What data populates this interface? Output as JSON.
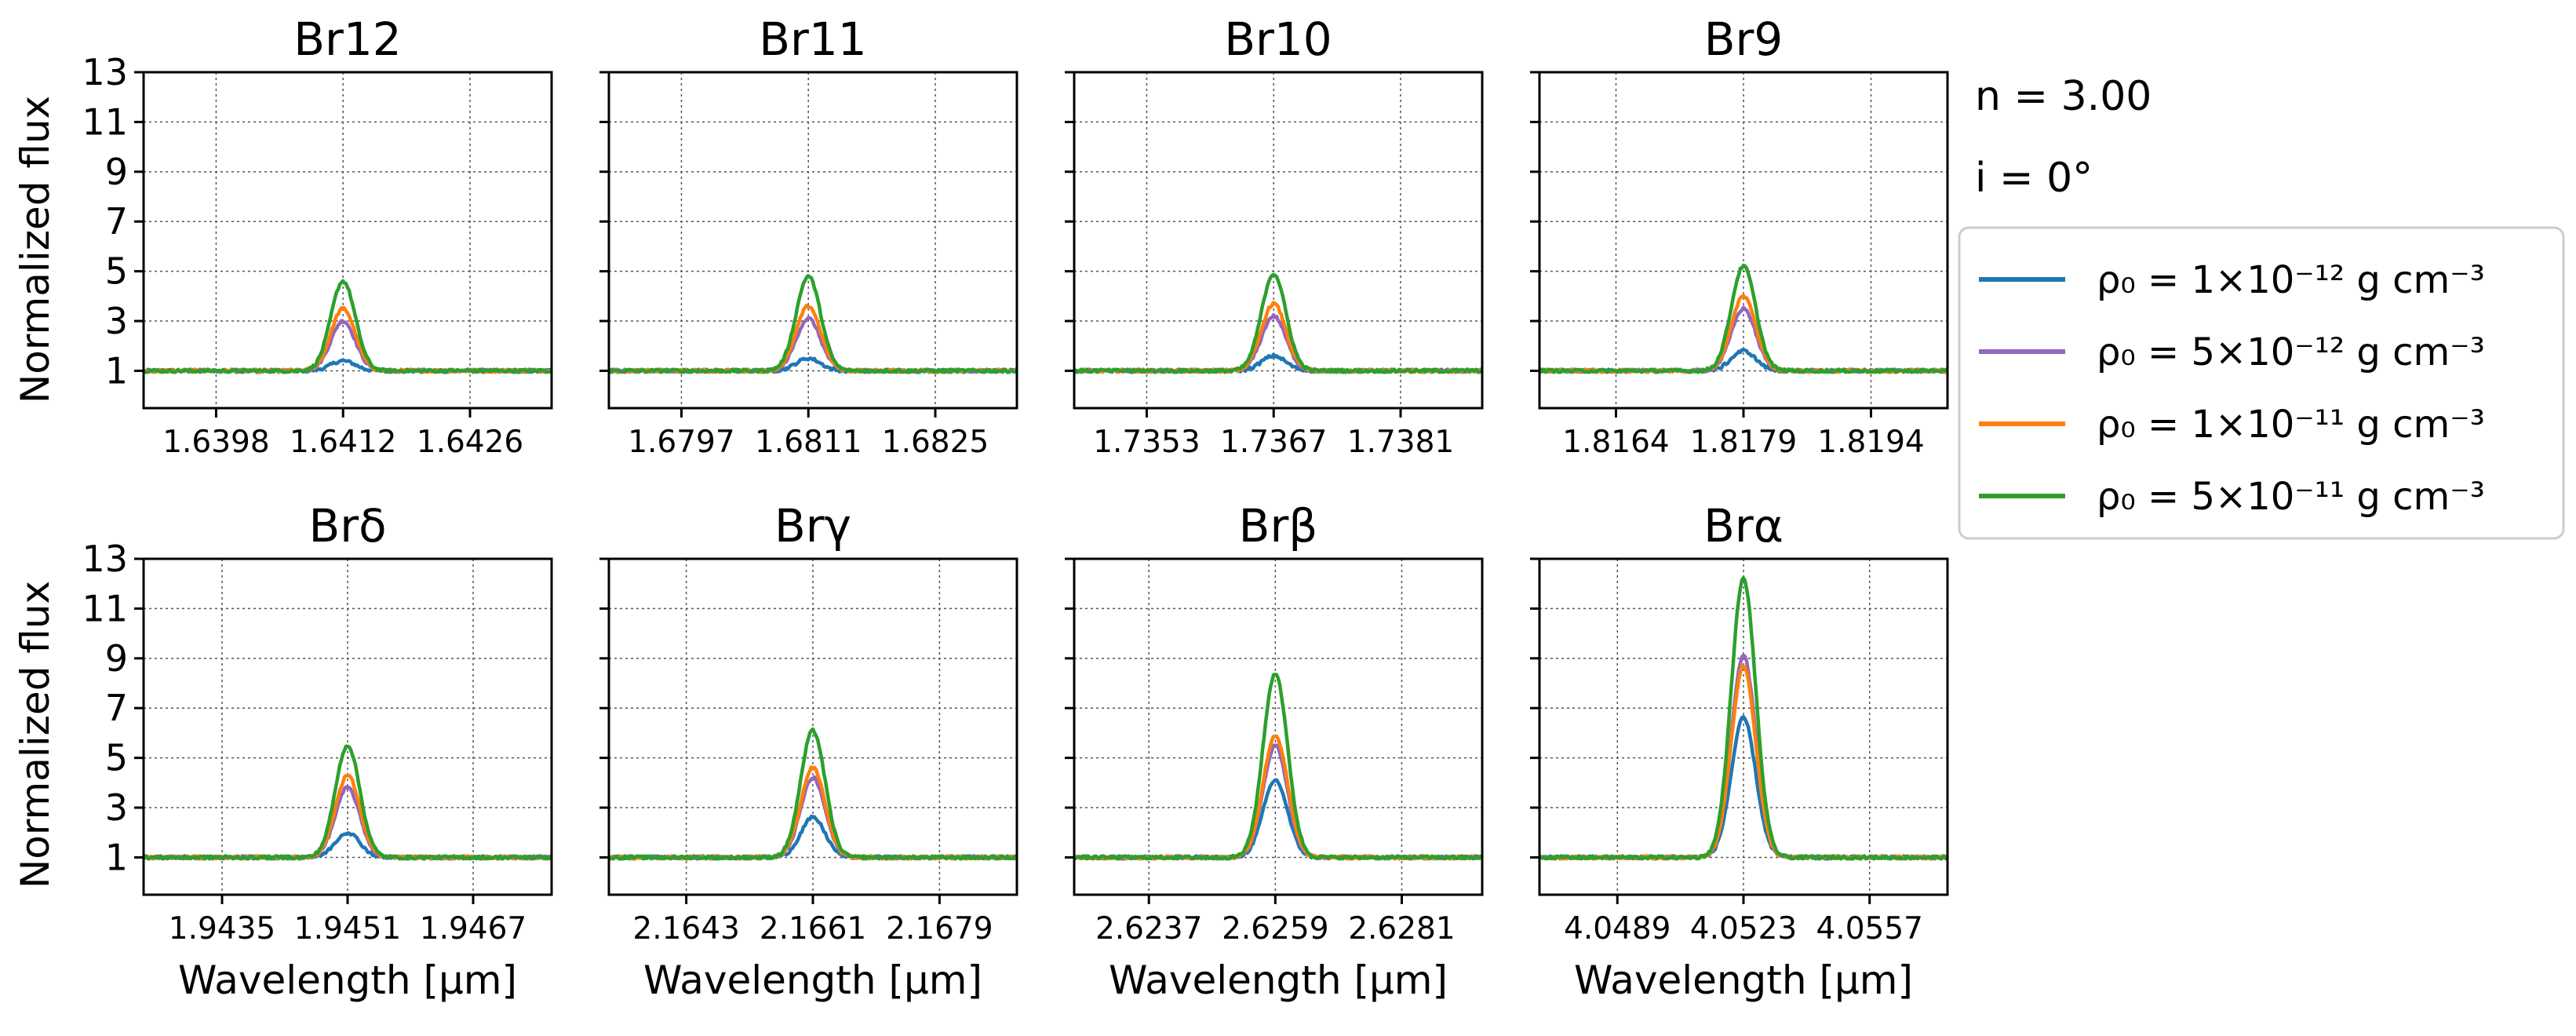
{
  "chart_data": {
    "type": "line",
    "ylabel": "Normalized flux",
    "xlabel": "Wavelength [μm]",
    "ylim": [
      -0.5,
      13
    ],
    "yticks": [
      "1",
      "3",
      "5",
      "7",
      "9",
      "11",
      "13"
    ],
    "grid": true,
    "annotations": {
      "density_index": "n = 3.00",
      "inclination": "i = 0°"
    },
    "legend": {
      "placement": "right",
      "entries": [
        {
          "label": "ρ₀ = 1×10⁻¹² g cm⁻³",
          "color": "#1f77b4"
        },
        {
          "label": "ρ₀ = 5×10⁻¹² g cm⁻³",
          "color": "#9467bd"
        },
        {
          "label": "ρ₀ = 1×10⁻¹¹ g cm⁻³",
          "color": "#ff7f0e"
        },
        {
          "label": "ρ₀ = 5×10⁻¹¹ g cm⁻³",
          "color": "#2ca02c"
        }
      ]
    },
    "panels": [
      {
        "title": "Br12",
        "center": 1.6412,
        "xlim": [
          1.639,
          1.6435
        ],
        "xticks": [
          "1.6398",
          "1.6412",
          "1.6426"
        ],
        "series": [
          {
            "name": "ρ₀ = 1×10⁻¹² g cm⁻³",
            "peak": 1.4
          },
          {
            "name": "ρ₀ = 5×10⁻¹² g cm⁻³",
            "peak": 3.0
          },
          {
            "name": "ρ₀ = 1×10⁻¹¹ g cm⁻³",
            "peak": 3.5
          },
          {
            "name": "ρ₀ = 5×10⁻¹¹ g cm⁻³",
            "peak": 4.6
          }
        ]
      },
      {
        "title": "Br11",
        "center": 1.6811,
        "xlim": [
          1.6789,
          1.6834
        ],
        "xticks": [
          "1.6797",
          "1.6811",
          "1.6825"
        ],
        "series": [
          {
            "name": "ρ₀ = 1×10⁻¹² g cm⁻³",
            "peak": 1.5
          },
          {
            "name": "ρ₀ = 5×10⁻¹² g cm⁻³",
            "peak": 3.1
          },
          {
            "name": "ρ₀ = 1×10⁻¹¹ g cm⁻³",
            "peak": 3.6
          },
          {
            "name": "ρ₀ = 5×10⁻¹¹ g cm⁻³",
            "peak": 4.8
          }
        ]
      },
      {
        "title": "Br10",
        "center": 1.7367,
        "xlim": [
          1.7345,
          1.739
        ],
        "xticks": [
          "1.7353",
          "1.7367",
          "1.7381"
        ],
        "series": [
          {
            "name": "ρ₀ = 1×10⁻¹² g cm⁻³",
            "peak": 1.6
          },
          {
            "name": "ρ₀ = 5×10⁻¹² g cm⁻³",
            "peak": 3.2
          },
          {
            "name": "ρ₀ = 1×10⁻¹¹ g cm⁻³",
            "peak": 3.7
          },
          {
            "name": "ρ₀ = 5×10⁻¹¹ g cm⁻³",
            "peak": 4.9
          }
        ]
      },
      {
        "title": "Br9",
        "center": 1.8179,
        "xlim": [
          1.8155,
          1.8203
        ],
        "xticks": [
          "1.8164",
          "1.8179",
          "1.8194"
        ],
        "series": [
          {
            "name": "ρ₀ = 1×10⁻¹² g cm⁻³",
            "peak": 1.8
          },
          {
            "name": "ρ₀ = 5×10⁻¹² g cm⁻³",
            "peak": 3.5
          },
          {
            "name": "ρ₀ = 1×10⁻¹¹ g cm⁻³",
            "peak": 4.0
          },
          {
            "name": "ρ₀ = 5×10⁻¹¹ g cm⁻³",
            "peak": 5.2
          }
        ]
      },
      {
        "title": "Brδ",
        "center": 1.9451,
        "xlim": [
          1.9425,
          1.9477
        ],
        "xticks": [
          "1.9435",
          "1.9451",
          "1.9467"
        ],
        "series": [
          {
            "name": "ρ₀ = 1×10⁻¹² g cm⁻³",
            "peak": 2.0
          },
          {
            "name": "ρ₀ = 5×10⁻¹² g cm⁻³",
            "peak": 3.8
          },
          {
            "name": "ρ₀ = 1×10⁻¹¹ g cm⁻³",
            "peak": 4.3
          },
          {
            "name": "ρ₀ = 5×10⁻¹¹ g cm⁻³",
            "peak": 5.5
          }
        ]
      },
      {
        "title": "Brγ",
        "center": 2.1661,
        "xlim": [
          2.1632,
          2.169
        ],
        "xticks": [
          "2.1643",
          "2.1661",
          "2.1679"
        ],
        "series": [
          {
            "name": "ρ₀ = 1×10⁻¹² g cm⁻³",
            "peak": 2.6
          },
          {
            "name": "ρ₀ = 5×10⁻¹² g cm⁻³",
            "peak": 4.2
          },
          {
            "name": "ρ₀ = 1×10⁻¹¹ g cm⁻³",
            "peak": 4.6
          },
          {
            "name": "ρ₀ = 5×10⁻¹¹ g cm⁻³",
            "peak": 6.1
          }
        ]
      },
      {
        "title": "Brβ",
        "center": 2.6259,
        "xlim": [
          2.6224,
          2.6295
        ],
        "xticks": [
          "2.6237",
          "2.6259",
          "2.6281"
        ],
        "series": [
          {
            "name": "ρ₀ = 1×10⁻¹² g cm⁻³",
            "peak": 4.1
          },
          {
            "name": "ρ₀ = 5×10⁻¹² g cm⁻³",
            "peak": 5.5
          },
          {
            "name": "ρ₀ = 1×10⁻¹¹ g cm⁻³",
            "peak": 5.9
          },
          {
            "name": "ρ₀ = 5×10⁻¹¹ g cm⁻³",
            "peak": 8.4
          }
        ]
      },
      {
        "title": "Brα",
        "center": 4.0523,
        "xlim": [
          4.0468,
          4.0578
        ],
        "xticks": [
          "4.0489",
          "4.0523",
          "4.0557"
        ],
        "series": [
          {
            "name": "ρ₀ = 1×10⁻¹² g cm⁻³",
            "peak": 6.6
          },
          {
            "name": "ρ₀ = 5×10⁻¹² g cm⁻³",
            "peak": 9.1
          },
          {
            "name": "ρ₀ = 1×10⁻¹¹ g cm⁻³",
            "peak": 8.7
          },
          {
            "name": "ρ₀ = 5×10⁻¹¹ g cm⁻³",
            "peak": 12.2
          }
        ]
      }
    ]
  }
}
